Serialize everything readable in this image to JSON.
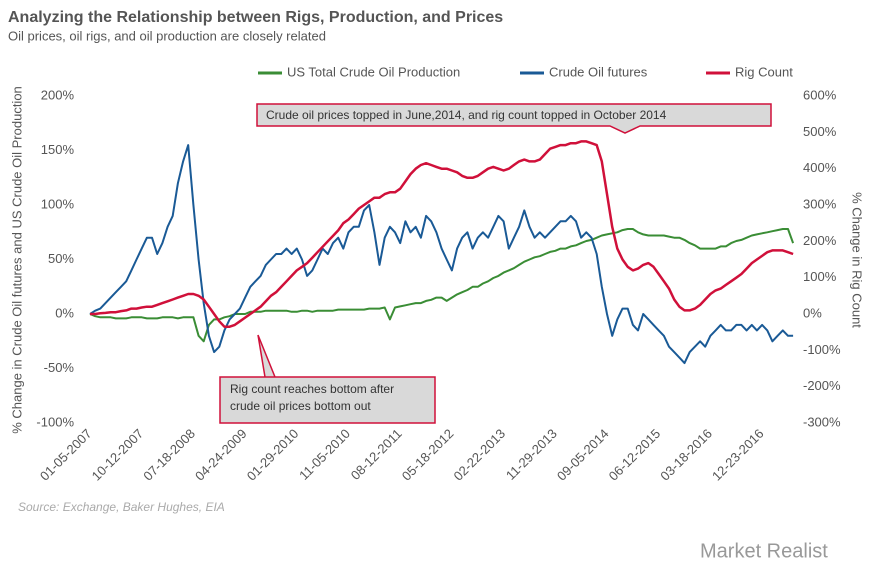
{
  "chart_data": {
    "type": "line",
    "title": "Analyzing the Relationship between Rigs, Production, and Prices",
    "subtitle": "Oil prices, oil rigs, and oil production are closely related",
    "ylabel": "% Change in Crude Oil futures and US Crude Oil Production",
    "y2label": "% Change in Rig Count",
    "source": "Source: Exchange, Baker Hughes, EIA",
    "brand": "Market Realist",
    "grid": false,
    "annotations": [
      {
        "lines": [
          "Crude oil prices topped in June,2014, and rig count topped in October 2014"
        ]
      },
      {
        "lines": [
          "Rig count reaches bottom after",
          "crude oil prices bottom out"
        ]
      }
    ],
    "ylim": [
      -100,
      200
    ],
    "yticks": [
      {
        "value": -100,
        "label": "-100%"
      },
      {
        "value": -50,
        "label": "-50%"
      },
      {
        "value": 0,
        "label": "0%"
      },
      {
        "value": 50,
        "label": "50%"
      },
      {
        "value": 100,
        "label": "100%"
      },
      {
        "value": 150,
        "label": "150%"
      },
      {
        "value": 200,
        "label": "200%"
      }
    ],
    "y2lim": [
      -300,
      600
    ],
    "y2ticks": [
      {
        "value": -300,
        "label": "-300%"
      },
      {
        "value": -200,
        "label": "-200%"
      },
      {
        "value": -100,
        "label": "-100%"
      },
      {
        "value": 0,
        "label": "0%"
      },
      {
        "value": 100,
        "label": "100%"
      },
      {
        "value": 200,
        "label": "200%"
      },
      {
        "value": 300,
        "label": "300%"
      },
      {
        "value": 400,
        "label": "400%"
      },
      {
        "value": 500,
        "label": "500%"
      },
      {
        "value": 600,
        "label": "600%"
      }
    ],
    "categories": [
      "01-05-2007",
      null,
      null,
      null,
      null,
      null,
      null,
      null,
      null,
      null,
      "10-12-2007",
      null,
      null,
      null,
      null,
      null,
      null,
      null,
      null,
      null,
      "07-18-2008",
      null,
      null,
      null,
      null,
      null,
      null,
      null,
      null,
      null,
      "04-24-2009",
      null,
      null,
      null,
      null,
      null,
      null,
      null,
      null,
      null,
      "01-29-2010",
      null,
      null,
      null,
      null,
      null,
      null,
      null,
      null,
      null,
      "11-05-2010",
      null,
      null,
      null,
      null,
      null,
      null,
      null,
      null,
      null,
      "08-12-2011",
      null,
      null,
      null,
      null,
      null,
      null,
      null,
      null,
      null,
      "05-18-2012",
      null,
      null,
      null,
      null,
      null,
      null,
      null,
      null,
      null,
      "02-22-2013",
      null,
      null,
      null,
      null,
      null,
      null,
      null,
      null,
      null,
      "11-29-2013",
      null,
      null,
      null,
      null,
      null,
      null,
      null,
      null,
      null,
      "09-05-2014",
      null,
      null,
      null,
      null,
      null,
      null,
      null,
      null,
      null,
      "06-12-2015",
      null,
      null,
      null,
      null,
      null,
      null,
      null,
      null,
      null,
      "03-18-2016",
      null,
      null,
      null,
      null,
      null,
      null,
      null,
      null,
      null,
      "12-23-2016",
      null,
      null,
      null,
      null,
      null,
      null
    ],
    "series": [
      {
        "name": "US Total Crude Oil Production",
        "color": "#3a8d35",
        "values": [
          0,
          -2,
          -3,
          -3,
          -3,
          -4,
          -4,
          -4,
          -3,
          -3,
          -3,
          -4,
          -4,
          -4,
          -3,
          -3,
          -3,
          -4,
          -3,
          -3,
          -3,
          -20,
          -25,
          -10,
          -5,
          -5,
          -3,
          -2,
          0,
          0,
          0,
          2,
          2,
          2,
          3,
          3,
          3,
          3,
          3,
          2,
          2,
          3,
          3,
          2,
          3,
          3,
          3,
          3,
          4,
          4,
          4,
          4,
          4,
          4,
          5,
          5,
          5,
          6,
          -5,
          6,
          7,
          8,
          9,
          10,
          10,
          12,
          13,
          15,
          15,
          12,
          15,
          18,
          20,
          22,
          25,
          25,
          28,
          30,
          33,
          35,
          38,
          40,
          42,
          45,
          48,
          50,
          52,
          53,
          55,
          57,
          58,
          60,
          60,
          62,
          63,
          65,
          67,
          68,
          70,
          72,
          73,
          74,
          75,
          77,
          78,
          78,
          75,
          73,
          72,
          72,
          72,
          72,
          71,
          70,
          70,
          68,
          65,
          63,
          60,
          60,
          60,
          60,
          62,
          62,
          65,
          67,
          68,
          70,
          72,
          73,
          74,
          75,
          76,
          77,
          78,
          78,
          65
        ]
      },
      {
        "name": "Crude  Oil futures",
        "color": "#1a5a96",
        "values": [
          0,
          3,
          5,
          10,
          15,
          20,
          25,
          30,
          40,
          50,
          60,
          70,
          70,
          55,
          65,
          80,
          90,
          120,
          140,
          155,
          100,
          50,
          10,
          -20,
          -35,
          -30,
          -15,
          -5,
          0,
          5,
          15,
          25,
          30,
          35,
          45,
          50,
          55,
          55,
          60,
          55,
          60,
          50,
          35,
          40,
          50,
          60,
          55,
          65,
          70,
          60,
          75,
          80,
          80,
          95,
          100,
          75,
          45,
          70,
          80,
          75,
          65,
          85,
          75,
          80,
          70,
          90,
          85,
          75,
          60,
          50,
          40,
          60,
          70,
          75,
          60,
          70,
          75,
          70,
          80,
          90,
          85,
          60,
          70,
          80,
          95,
          80,
          70,
          75,
          70,
          75,
          80,
          85,
          85,
          90,
          85,
          70,
          75,
          70,
          55,
          25,
          0,
          -20,
          -5,
          5,
          5,
          -10,
          -15,
          0,
          -5,
          -10,
          -15,
          -20,
          -30,
          -35,
          -40,
          -45,
          -35,
          -30,
          -25,
          -30,
          -20,
          -15,
          -10,
          -15,
          -15,
          -10,
          -10,
          -15,
          -10,
          -15,
          -10,
          -15,
          -25,
          -20,
          -15,
          -20,
          -20
        ]
      },
      {
        "name": "Rig Count",
        "color": "#d0103a",
        "axis": "y2",
        "values": [
          0,
          0,
          2,
          3,
          5,
          5,
          8,
          10,
          15,
          15,
          18,
          20,
          20,
          25,
          30,
          35,
          40,
          45,
          50,
          55,
          55,
          50,
          40,
          20,
          0,
          -20,
          -35,
          -35,
          -30,
          -20,
          -10,
          0,
          10,
          20,
          35,
          50,
          60,
          75,
          90,
          105,
          120,
          130,
          140,
          155,
          170,
          185,
          200,
          215,
          230,
          250,
          260,
          275,
          290,
          300,
          310,
          320,
          320,
          330,
          335,
          335,
          345,
          365,
          385,
          400,
          410,
          415,
          410,
          405,
          400,
          400,
          395,
          390,
          380,
          375,
          375,
          380,
          390,
          400,
          405,
          400,
          395,
          400,
          410,
          420,
          425,
          420,
          420,
          425,
          440,
          455,
          460,
          465,
          465,
          470,
          470,
          475,
          475,
          470,
          465,
          420,
          330,
          240,
          180,
          150,
          130,
          120,
          125,
          135,
          140,
          130,
          110,
          90,
          70,
          40,
          20,
          10,
          10,
          15,
          25,
          40,
          55,
          65,
          70,
          80,
          90,
          100,
          110,
          125,
          140,
          150,
          160,
          170,
          175,
          175,
          175,
          170,
          165
        ]
      }
    ]
  }
}
